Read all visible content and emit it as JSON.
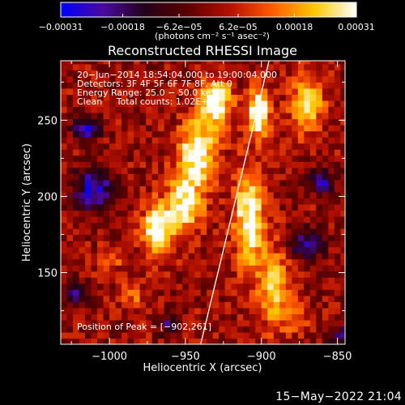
{
  "chart_data": {
    "type": "heatmap",
    "title": "Reconstructed RHESSI Image",
    "xlabel": "Heliocentric X (arcsec)",
    "ylabel": "Heliocentric Y (arcsec)",
    "xlim": [
      -1032,
      -845
    ],
    "ylim": [
      103,
      289
    ],
    "x_ticks": [
      {
        "value": -1000,
        "label": "−1000"
      },
      {
        "value": -950,
        "label": "−950"
      },
      {
        "value": -900,
        "label": "−900"
      },
      {
        "value": -850,
        "label": "−850"
      }
    ],
    "y_ticks": [
      {
        "value": 150,
        "label": "150"
      },
      {
        "value": 200,
        "label": "200"
      },
      {
        "value": 250,
        "label": "250"
      }
    ],
    "colorbar": {
      "range": [
        -0.00031,
        0.00031
      ],
      "colors": [
        "#0000ff",
        "#4a0aa0",
        "#240018",
        "#5a0000",
        "#b41000",
        "#ff5a00",
        "#ffc800",
        "#ffffff"
      ],
      "ticks": [
        {
          "value": -0.00031,
          "label": "−0.00031"
        },
        {
          "value": -0.00018,
          "label": "−0.00018"
        },
        {
          "value": -6.2e-05,
          "label": "−6.2e−05"
        },
        {
          "value": 6.2e-05,
          "label": "6.2e−05"
        },
        {
          "value": 0.00018,
          "label": "0.00018"
        },
        {
          "value": 0.00031,
          "label": "0.00031"
        }
      ],
      "unit_label": "(photons cm⁻² s⁻¹ asec⁻²)"
    },
    "annotations": [
      "20−Jun−2014 18:54:04.000 to 19:00:04.000",
      "Detectors: 3F 4F 5F 6F 7F 8F, Att 0",
      "Energy Range: 25.0 − 50.0 keV",
      "Clean     Total counts: 1.02E+04"
    ],
    "peak_label": "Position of Peak = [−902,261]",
    "peak": [
      -902,
      261
    ],
    "limb_line": [
      [
        -940,
        103
      ],
      [
        -895,
        289
      ]
    ],
    "grid": false,
    "grid_step": 4,
    "features": [
      {
        "x": -968,
        "y": 178,
        "sx": 7,
        "sy": 12,
        "amp": 1.1
      },
      {
        "x": -950,
        "y": 196,
        "sx": 8,
        "sy": 14,
        "amp": 0.9
      },
      {
        "x": -942,
        "y": 230,
        "sx": 9,
        "sy": 14,
        "amp": 1.0
      },
      {
        "x": -930,
        "y": 262,
        "sx": 7,
        "sy": 10,
        "amp": 1.1
      },
      {
        "x": -908,
        "y": 186,
        "sx": 7,
        "sy": 22,
        "amp": 1.0
      },
      {
        "x": -902,
        "y": 255,
        "sx": 5,
        "sy": 10,
        "amp": 1.2
      },
      {
        "x": -892,
        "y": 140,
        "sx": 8,
        "sy": 18,
        "amp": 0.7
      },
      {
        "x": -870,
        "y": 262,
        "sx": 8,
        "sy": 14,
        "amp": 0.7
      },
      {
        "x": -1000,
        "y": 160,
        "sx": 6,
        "sy": 6,
        "amp": 0.4
      },
      {
        "x": -985,
        "y": 135,
        "sx": 6,
        "sy": 7,
        "amp": 0.35
      },
      {
        "x": -878,
        "y": 120,
        "sx": 6,
        "sy": 6,
        "amp": 0.4
      },
      {
        "x": -1010,
        "y": 205,
        "sx": 10,
        "sy": 10,
        "amp": -0.9
      },
      {
        "x": -1015,
        "y": 245,
        "sx": 6,
        "sy": 5,
        "amp": -1.0
      },
      {
        "x": -870,
        "y": 168,
        "sx": 8,
        "sy": 8,
        "amp": -0.7
      },
      {
        "x": -860,
        "y": 210,
        "sx": 6,
        "sy": 6,
        "amp": -0.8
      },
      {
        "x": -1022,
        "y": 135,
        "sx": 6,
        "sy": 6,
        "amp": -0.6
      },
      {
        "x": -960,
        "y": 116,
        "sx": 5,
        "sy": 5,
        "amp": -0.6
      },
      {
        "x": -848,
        "y": 108,
        "sx": 5,
        "sy": 5,
        "amp": -0.7
      }
    ]
  },
  "footer_date": "15−May−2022 21:04"
}
